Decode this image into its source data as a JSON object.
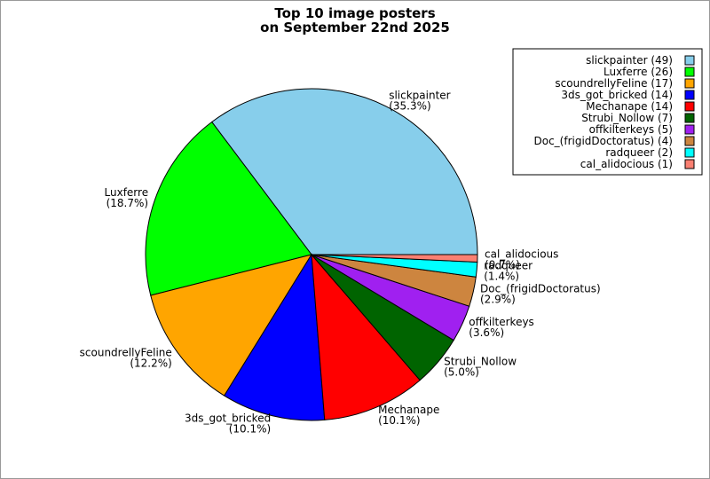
{
  "chart_data": {
    "type": "pie",
    "title": [
      "Top 10 image posters",
      "on September 22nd 2025"
    ],
    "legend_position": "top-right",
    "slices": [
      {
        "name": "slickpainter",
        "value": 49,
        "percent": "35.3%",
        "color": "#87ceeb",
        "legend": "slickpainter (49)"
      },
      {
        "name": "Luxferre",
        "value": 26,
        "percent": "18.7%",
        "color": "#00ff00",
        "legend": "Luxferre (26)"
      },
      {
        "name": "scoundrellyFeline",
        "value": 17,
        "percent": "12.2%",
        "color": "#ffa500",
        "legend": "scoundrellyFeline (17)"
      },
      {
        "name": "3ds_got_bricked",
        "value": 14,
        "percent": "10.1%",
        "color": "#0000ff",
        "legend": "3ds_got_bricked (14)"
      },
      {
        "name": "Mechanape",
        "value": 14,
        "percent": "10.1%",
        "color": "#ff0000",
        "legend": "Mechanape (14)"
      },
      {
        "name": "Strubi_Nollow",
        "value": 7,
        "percent": "5.0%",
        "color": "#006400",
        "legend": "Strubi_Nollow (7)"
      },
      {
        "name": "offkilterkeys",
        "value": 5,
        "percent": "3.6%",
        "color": "#a020f0",
        "legend": "offkilterkeys (5)"
      },
      {
        "name": "Doc_(frigidDoctoratus)",
        "value": 4,
        "percent": "2.9%",
        "color": "#cd853f",
        "legend": "Doc_(frigidDoctoratus) (4)"
      },
      {
        "name": "radqueer",
        "value": 2,
        "percent": "1.4%",
        "color": "#00ffff",
        "legend": "radqueer (2)"
      },
      {
        "name": "cal_alidocious",
        "value": 1,
        "percent": "0.7%",
        "color": "#fa8072",
        "legend": "cal_alidocious (1)"
      }
    ]
  }
}
